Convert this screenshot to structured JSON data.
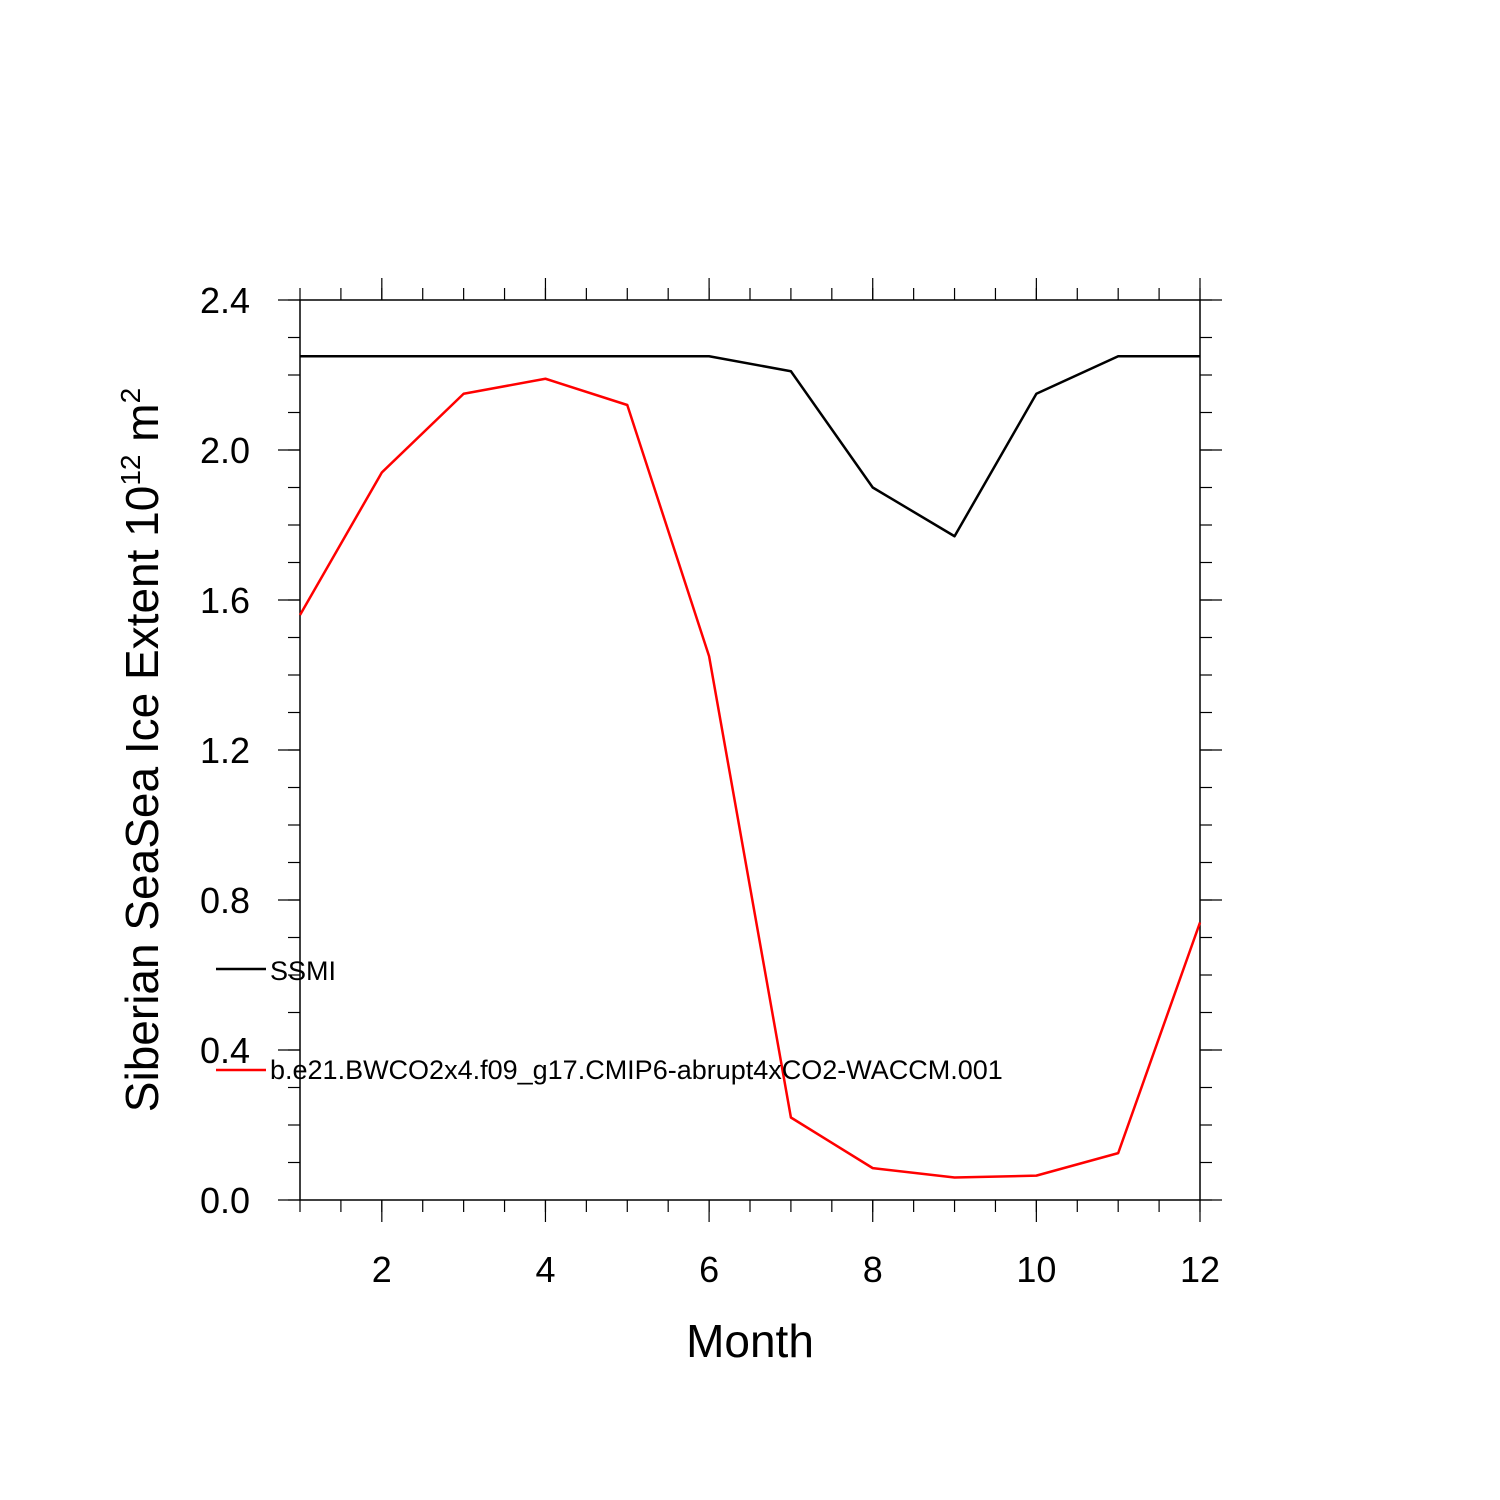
{
  "chart_data": {
    "type": "line",
    "xlabel": "Month",
    "ylabel_text": "Siberian SeaSea Ice Extent 10",
    "ylabel_exp": "12",
    "ylabel_unit": " m",
    "ylabel_unit_exp": "2",
    "xlim": [
      1,
      12
    ],
    "ylim": [
      0,
      2.4
    ],
    "x_ticks": [
      2,
      4,
      6,
      8,
      10,
      12
    ],
    "x_tick_labels": [
      "2",
      "4",
      "6",
      "8",
      "10",
      "12"
    ],
    "y_ticks": [
      0.0,
      0.4,
      0.8,
      1.2,
      1.6,
      2.0,
      2.4
    ],
    "y_tick_labels": [
      "0.0",
      "0.4",
      "0.8",
      "1.2",
      "1.6",
      "2.0",
      "2.4"
    ],
    "x": [
      1,
      2,
      3,
      4,
      5,
      6,
      7,
      8,
      9,
      10,
      11,
      12
    ],
    "series": [
      {
        "name": "SSMI",
        "color": "#000000",
        "values": [
          2.25,
          2.25,
          2.25,
          2.25,
          2.25,
          2.25,
          2.21,
          1.9,
          1.77,
          2.15,
          2.25,
          2.25
        ]
      },
      {
        "name": "b.e21.BWCO2x4.f09_g17.CMIP6-abrupt4xCO2-WACCM.001",
        "color": "#ff0000",
        "values": [
          1.56,
          1.94,
          2.15,
          2.19,
          2.12,
          1.45,
          0.22,
          0.085,
          0.06,
          0.065,
          0.125,
          0.74
        ]
      }
    ],
    "legend_position": "lower-left inside plot",
    "grid": false
  }
}
